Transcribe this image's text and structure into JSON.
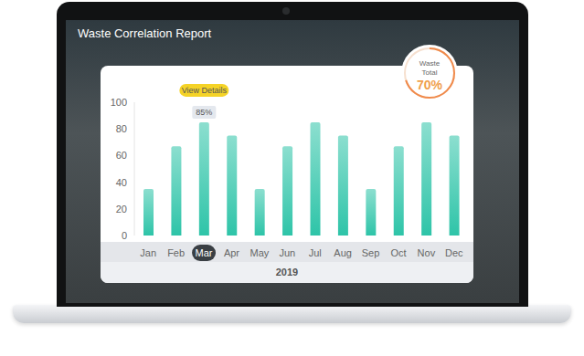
{
  "chart_data": {
    "type": "bar",
    "title": "Waste Correlation Report",
    "xlabel": "2019",
    "categories": [
      "Jan",
      "Feb",
      "Mar",
      "Apr",
      "May",
      "Jun",
      "Jul",
      "Aug",
      "Sep",
      "Oct",
      "Nov",
      "Dec"
    ],
    "values": [
      35,
      67,
      85,
      75,
      35,
      67,
      85,
      75,
      35,
      67,
      85,
      75
    ],
    "value_labels": [
      null,
      null,
      "85%",
      null,
      null,
      null,
      null,
      null,
      null,
      null,
      null,
      null
    ],
    "color": "#2ec4a8",
    "ylim": [
      0,
      100
    ],
    "yticks": [
      0,
      20,
      40,
      60,
      80,
      100
    ],
    "grid": false,
    "annotations": [
      {
        "text": "View Details",
        "category": "Mar"
      },
      {
        "text": "Waste Total",
        "value": 70,
        "label": "70%"
      }
    ]
  }
}
